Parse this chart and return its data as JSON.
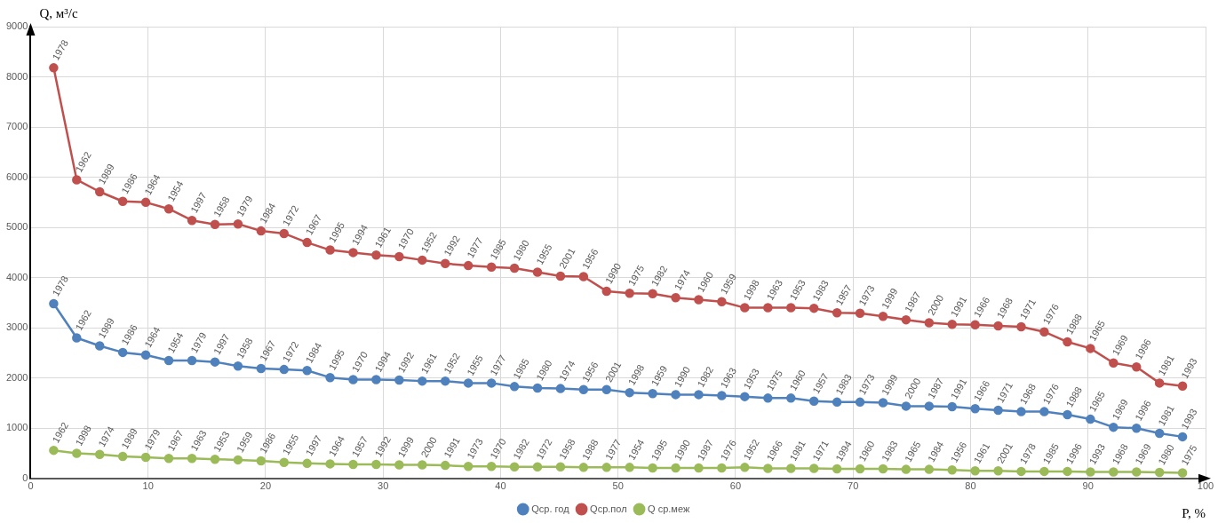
{
  "chart_data": {
    "type": "line",
    "xlabel": "P, %",
    "ylabel": "Q, м³/с",
    "xlim": [
      0,
      100
    ],
    "xticks": [
      0,
      10,
      20,
      30,
      40,
      50,
      60,
      70,
      80,
      90,
      100
    ],
    "ylim": [
      0,
      9000
    ],
    "yticks": [
      0,
      1000,
      2000,
      3000,
      4000,
      5000,
      6000,
      7000,
      8000,
      9000
    ],
    "grid": true,
    "legend": "bottom",
    "marker": "circle",
    "x": [
      1.96,
      3.92,
      5.88,
      7.84,
      9.8,
      11.76,
      13.73,
      15.69,
      17.65,
      19.61,
      21.57,
      23.53,
      25.49,
      27.45,
      29.41,
      31.37,
      33.33,
      35.29,
      37.25,
      39.22,
      41.18,
      43.14,
      45.1,
      47.06,
      49.02,
      50.98,
      52.94,
      54.9,
      56.86,
      58.82,
      60.78,
      62.75,
      64.71,
      66.67,
      68.63,
      70.59,
      72.55,
      74.51,
      76.47,
      78.43,
      80.39,
      82.35,
      84.31,
      86.27,
      88.24,
      90.2,
      92.16,
      94.12,
      96.08,
      98.04
    ],
    "series": [
      {
        "name": "Qср. год",
        "color": "#4f81bd",
        "values": [
          3480,
          2800,
          2640,
          2510,
          2460,
          2350,
          2350,
          2320,
          2240,
          2190,
          2170,
          2150,
          2010,
          1970,
          1970,
          1960,
          1940,
          1940,
          1900,
          1900,
          1830,
          1800,
          1790,
          1770,
          1770,
          1710,
          1690,
          1670,
          1670,
          1650,
          1630,
          1600,
          1600,
          1540,
          1520,
          1520,
          1510,
          1440,
          1440,
          1430,
          1390,
          1360,
          1330,
          1330,
          1270,
          1180,
          1020,
          1000,
          900,
          830
        ]
      },
      {
        "name": "Qср.пол",
        "color": "#c0504d",
        "values": [
          8180,
          5950,
          5710,
          5520,
          5500,
          5370,
          5140,
          5060,
          5070,
          4930,
          4880,
          4700,
          4550,
          4500,
          4450,
          4420,
          4350,
          4280,
          4240,
          4210,
          4190,
          4110,
          4030,
          4020,
          3730,
          3690,
          3680,
          3600,
          3560,
          3520,
          3400,
          3400,
          3400,
          3390,
          3300,
          3290,
          3230,
          3160,
          3100,
          3070,
          3060,
          3040,
          3020,
          2920,
          2720,
          2590,
          2300,
          2220,
          1900,
          1840
        ]
      },
      {
        "name": "Q ср.меж",
        "color": "#9bbb59",
        "values": [
          560,
          500,
          480,
          440,
          420,
          400,
          400,
          380,
          370,
          350,
          320,
          300,
          290,
          280,
          280,
          270,
          270,
          260,
          240,
          240,
          230,
          230,
          230,
          220,
          220,
          220,
          210,
          210,
          210,
          210,
          220,
          200,
          200,
          200,
          190,
          190,
          190,
          180,
          180,
          170,
          150,
          150,
          140,
          140,
          140,
          130,
          130,
          130,
          120,
          110
        ]
      }
    ],
    "annotations": [
      {
        "text": "1978",
        "x": 1.96,
        "y": 3480
      },
      {
        "text": "1962",
        "x": 3.92,
        "y": 2800
      },
      {
        "text": "1989",
        "x": 5.88,
        "y": 2640
      },
      {
        "text": "1986",
        "x": 7.84,
        "y": 2510
      },
      {
        "text": "1964",
        "x": 9.8,
        "y": 2460
      },
      {
        "text": "1954",
        "x": 11.76,
        "y": 2350
      },
      {
        "text": "1979",
        "x": 13.73,
        "y": 2350
      },
      {
        "text": "1997",
        "x": 15.69,
        "y": 2320
      },
      {
        "text": "1958",
        "x": 17.65,
        "y": 2240
      },
      {
        "text": "1967",
        "x": 19.61,
        "y": 2190
      },
      {
        "text": "1972",
        "x": 21.57,
        "y": 2170
      },
      {
        "text": "1984",
        "x": 23.53,
        "y": 2150
      },
      {
        "text": "1995",
        "x": 25.49,
        "y": 2010
      },
      {
        "text": "1970",
        "x": 27.45,
        "y": 1970
      },
      {
        "text": "1994",
        "x": 29.41,
        "y": 1970
      },
      {
        "text": "1992",
        "x": 31.37,
        "y": 1960
      },
      {
        "text": "1961",
        "x": 33.33,
        "y": 1940
      },
      {
        "text": "1952",
        "x": 35.29,
        "y": 1940
      },
      {
        "text": "1955",
        "x": 37.25,
        "y": 1900
      },
      {
        "text": "1977",
        "x": 39.22,
        "y": 1900
      },
      {
        "text": "1985",
        "x": 41.18,
        "y": 1830
      },
      {
        "text": "1980",
        "x": 43.14,
        "y": 1800
      },
      {
        "text": "1974",
        "x": 45.1,
        "y": 1790
      },
      {
        "text": "1956",
        "x": 47.06,
        "y": 1770
      },
      {
        "text": "2001",
        "x": 49.02,
        "y": 1770
      },
      {
        "text": "1998",
        "x": 50.98,
        "y": 1710
      },
      {
        "text": "1959",
        "x": 52.94,
        "y": 1690
      },
      {
        "text": "1990",
        "x": 54.9,
        "y": 1670
      },
      {
        "text": "1982",
        "x": 56.86,
        "y": 1670
      },
      {
        "text": "1963",
        "x": 58.82,
        "y": 1650
      },
      {
        "text": "1953",
        "x": 60.78,
        "y": 1630
      },
      {
        "text": "1975",
        "x": 62.75,
        "y": 1600
      },
      {
        "text": "1960",
        "x": 64.71,
        "y": 1600
      },
      {
        "text": "1957",
        "x": 66.67,
        "y": 1540
      },
      {
        "text": "1983",
        "x": 68.63,
        "y": 1520
      },
      {
        "text": "1973",
        "x": 70.59,
        "y": 1520
      },
      {
        "text": "1999",
        "x": 72.55,
        "y": 1510
      },
      {
        "text": "2000",
        "x": 74.51,
        "y": 1440
      },
      {
        "text": "1987",
        "x": 76.47,
        "y": 1440
      },
      {
        "text": "1991",
        "x": 78.43,
        "y": 1430
      },
      {
        "text": "1966",
        "x": 80.39,
        "y": 1390
      },
      {
        "text": "1971",
        "x": 82.35,
        "y": 1360
      },
      {
        "text": "1968",
        "x": 84.31,
        "y": 1330
      },
      {
        "text": "1976",
        "x": 86.27,
        "y": 1330
      },
      {
        "text": "1988",
        "x": 88.24,
        "y": 1270
      },
      {
        "text": "1965",
        "x": 90.2,
        "y": 1180
      },
      {
        "text": "1969",
        "x": 92.16,
        "y": 1020
      },
      {
        "text": "1996",
        "x": 94.12,
        "y": 1000
      },
      {
        "text": "1981",
        "x": 96.08,
        "y": 900
      },
      {
        "text": "1993",
        "x": 98.04,
        "y": 830
      },
      {
        "text": "1978",
        "x": 1.96,
        "y": 8180
      },
      {
        "text": "1962",
        "x": 3.92,
        "y": 5950
      },
      {
        "text": "1989",
        "x": 5.88,
        "y": 5710
      },
      {
        "text": "1986",
        "x": 7.84,
        "y": 5520
      },
      {
        "text": "1964",
        "x": 9.8,
        "y": 5500
      },
      {
        "text": "1954",
        "x": 11.76,
        "y": 5370
      },
      {
        "text": "1997",
        "x": 13.73,
        "y": 5140
      },
      {
        "text": "1958",
        "x": 15.69,
        "y": 5060
      },
      {
        "text": "1979",
        "x": 17.65,
        "y": 5070
      },
      {
        "text": "1984",
        "x": 19.61,
        "y": 4930
      },
      {
        "text": "1972",
        "x": 21.57,
        "y": 4880
      },
      {
        "text": "1967",
        "x": 23.53,
        "y": 4700
      },
      {
        "text": "1995",
        "x": 25.49,
        "y": 4550
      },
      {
        "text": "1994",
        "x": 27.45,
        "y": 4500
      },
      {
        "text": "1961",
        "x": 29.41,
        "y": 4450
      },
      {
        "text": "1970",
        "x": 31.37,
        "y": 4420
      },
      {
        "text": "1952",
        "x": 33.33,
        "y": 4350
      },
      {
        "text": "1992",
        "x": 35.29,
        "y": 4280
      },
      {
        "text": "1977",
        "x": 37.25,
        "y": 4240
      },
      {
        "text": "1985",
        "x": 39.22,
        "y": 4210
      },
      {
        "text": "1980",
        "x": 41.18,
        "y": 4190
      },
      {
        "text": "1955",
        "x": 43.14,
        "y": 4110
      },
      {
        "text": "2001",
        "x": 45.1,
        "y": 4030
      },
      {
        "text": "1956",
        "x": 47.06,
        "y": 4020
      },
      {
        "text": "1990",
        "x": 49.02,
        "y": 3730
      },
      {
        "text": "1975",
        "x": 50.98,
        "y": 3690
      },
      {
        "text": "1982",
        "x": 52.94,
        "y": 3680
      },
      {
        "text": "1974",
        "x": 54.9,
        "y": 3600
      },
      {
        "text": "1960",
        "x": 56.86,
        "y": 3560
      },
      {
        "text": "1959",
        "x": 58.82,
        "y": 3520
      },
      {
        "text": "1998",
        "x": 60.78,
        "y": 3400
      },
      {
        "text": "1963",
        "x": 62.75,
        "y": 3400
      },
      {
        "text": "1953",
        "x": 64.71,
        "y": 3400
      },
      {
        "text": "1983",
        "x": 66.67,
        "y": 3390
      },
      {
        "text": "1957",
        "x": 68.63,
        "y": 3300
      },
      {
        "text": "1973",
        "x": 70.59,
        "y": 3290
      },
      {
        "text": "1999",
        "x": 72.55,
        "y": 3230
      },
      {
        "text": "1987",
        "x": 74.51,
        "y": 3160
      },
      {
        "text": "2000",
        "x": 76.47,
        "y": 3100
      },
      {
        "text": "1991",
        "x": 78.43,
        "y": 3070
      },
      {
        "text": "1966",
        "x": 80.39,
        "y": 3060
      },
      {
        "text": "1968",
        "x": 82.35,
        "y": 3040
      },
      {
        "text": "1971",
        "x": 84.31,
        "y": 3020
      },
      {
        "text": "1976",
        "x": 86.27,
        "y": 2920
      },
      {
        "text": "1988",
        "x": 88.24,
        "y": 2720
      },
      {
        "text": "1965",
        "x": 90.2,
        "y": 2590
      },
      {
        "text": "1969",
        "x": 92.16,
        "y": 2300
      },
      {
        "text": "1996",
        "x": 94.12,
        "y": 2220
      },
      {
        "text": "1981",
        "x": 96.08,
        "y": 1900
      },
      {
        "text": "1993",
        "x": 98.04,
        "y": 1840
      },
      {
        "text": "1962",
        "x": 1.96,
        "y": 560
      },
      {
        "text": "1998",
        "x": 3.92,
        "y": 500
      },
      {
        "text": "1974",
        "x": 5.88,
        "y": 480
      },
      {
        "text": "1989",
        "x": 7.84,
        "y": 440
      },
      {
        "text": "1979",
        "x": 9.8,
        "y": 420
      },
      {
        "text": "1967",
        "x": 11.76,
        "y": 400
      },
      {
        "text": "1963",
        "x": 13.73,
        "y": 400
      },
      {
        "text": "1953",
        "x": 15.69,
        "y": 380
      },
      {
        "text": "1959",
        "x": 17.65,
        "y": 370
      },
      {
        "text": "1986",
        "x": 19.61,
        "y": 350
      },
      {
        "text": "1955",
        "x": 21.57,
        "y": 320
      },
      {
        "text": "1997",
        "x": 23.53,
        "y": 300
      },
      {
        "text": "1964",
        "x": 25.49,
        "y": 290
      },
      {
        "text": "1957",
        "x": 27.45,
        "y": 280
      },
      {
        "text": "1992",
        "x": 29.41,
        "y": 280
      },
      {
        "text": "1999",
        "x": 31.37,
        "y": 270
      },
      {
        "text": "2000",
        "x": 33.33,
        "y": 270
      },
      {
        "text": "1991",
        "x": 35.29,
        "y": 260
      },
      {
        "text": "1973",
        "x": 37.25,
        "y": 240
      },
      {
        "text": "1970",
        "x": 39.22,
        "y": 240
      },
      {
        "text": "1982",
        "x": 41.18,
        "y": 230
      },
      {
        "text": "1972",
        "x": 43.14,
        "y": 230
      },
      {
        "text": "1958",
        "x": 45.1,
        "y": 230
      },
      {
        "text": "1988",
        "x": 47.06,
        "y": 220
      },
      {
        "text": "1977",
        "x": 49.02,
        "y": 220
      },
      {
        "text": "1954",
        "x": 50.98,
        "y": 220
      },
      {
        "text": "1995",
        "x": 52.94,
        "y": 210
      },
      {
        "text": "1990",
        "x": 54.9,
        "y": 210
      },
      {
        "text": "1987",
        "x": 56.86,
        "y": 210
      },
      {
        "text": "1976",
        "x": 58.82,
        "y": 210
      },
      {
        "text": "1952",
        "x": 60.78,
        "y": 220
      },
      {
        "text": "1966",
        "x": 62.75,
        "y": 200
      },
      {
        "text": "1981",
        "x": 64.71,
        "y": 200
      },
      {
        "text": "1971",
        "x": 66.67,
        "y": 200
      },
      {
        "text": "1994",
        "x": 68.63,
        "y": 190
      },
      {
        "text": "1960",
        "x": 70.59,
        "y": 190
      },
      {
        "text": "1983",
        "x": 72.55,
        "y": 190
      },
      {
        "text": "1965",
        "x": 74.51,
        "y": 180
      },
      {
        "text": "1984",
        "x": 76.47,
        "y": 180
      },
      {
        "text": "1956",
        "x": 78.43,
        "y": 170
      },
      {
        "text": "1961",
        "x": 80.39,
        "y": 150
      },
      {
        "text": "2001",
        "x": 82.35,
        "y": 150
      },
      {
        "text": "1978",
        "x": 84.31,
        "y": 140
      },
      {
        "text": "1985",
        "x": 86.27,
        "y": 140
      },
      {
        "text": "1996",
        "x": 88.24,
        "y": 140
      },
      {
        "text": "1993",
        "x": 90.2,
        "y": 130
      },
      {
        "text": "1968",
        "x": 92.16,
        "y": 130
      },
      {
        "text": "1969",
        "x": 94.12,
        "y": 130
      },
      {
        "text": "1980",
        "x": 96.08,
        "y": 120
      },
      {
        "text": "1975",
        "x": 98.04,
        "y": 110
      }
    ]
  }
}
